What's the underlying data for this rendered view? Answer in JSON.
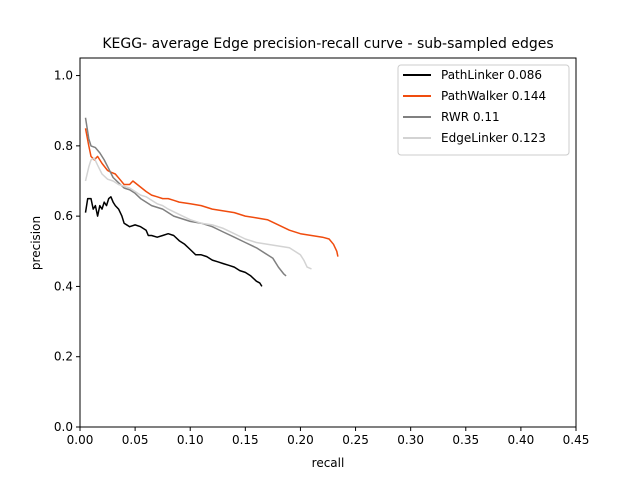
{
  "chart_data": {
    "type": "line",
    "title": "KEGG- average Edge precision-recall curve - sub-sampled edges",
    "xlabel": "recall",
    "ylabel": "precision",
    "xlim": [
      0,
      0.45
    ],
    "ylim": [
      0,
      1.05
    ],
    "xticks": [
      "0.00",
      "0.05",
      "0.10",
      "0.15",
      "0.20",
      "0.25",
      "0.30",
      "0.35",
      "0.40",
      "0.45"
    ],
    "yticks": [
      "0.0",
      "0.2",
      "0.4",
      "0.6",
      "0.8",
      "1.0"
    ],
    "grid": false,
    "legend_position": "upper right",
    "series": [
      {
        "name": "PathLinker 0.086",
        "color": "#000000",
        "points": [
          [
            0.005,
            0.61
          ],
          [
            0.007,
            0.65
          ],
          [
            0.01,
            0.65
          ],
          [
            0.012,
            0.62
          ],
          [
            0.014,
            0.63
          ],
          [
            0.016,
            0.6
          ],
          [
            0.018,
            0.63
          ],
          [
            0.02,
            0.62
          ],
          [
            0.022,
            0.64
          ],
          [
            0.024,
            0.63
          ],
          [
            0.026,
            0.65
          ],
          [
            0.028,
            0.655
          ],
          [
            0.03,
            0.64
          ],
          [
            0.032,
            0.63
          ],
          [
            0.035,
            0.62
          ],
          [
            0.038,
            0.6
          ],
          [
            0.04,
            0.58
          ],
          [
            0.045,
            0.57
          ],
          [
            0.05,
            0.575
          ],
          [
            0.055,
            0.57
          ],
          [
            0.06,
            0.56
          ],
          [
            0.062,
            0.545
          ],
          [
            0.065,
            0.545
          ],
          [
            0.07,
            0.54
          ],
          [
            0.075,
            0.545
          ],
          [
            0.08,
            0.55
          ],
          [
            0.085,
            0.545
          ],
          [
            0.09,
            0.53
          ],
          [
            0.095,
            0.52
          ],
          [
            0.1,
            0.505
          ],
          [
            0.105,
            0.49
          ],
          [
            0.11,
            0.49
          ],
          [
            0.115,
            0.485
          ],
          [
            0.12,
            0.475
          ],
          [
            0.125,
            0.47
          ],
          [
            0.13,
            0.465
          ],
          [
            0.135,
            0.46
          ],
          [
            0.14,
            0.455
          ],
          [
            0.145,
            0.445
          ],
          [
            0.15,
            0.44
          ],
          [
            0.155,
            0.43
          ],
          [
            0.16,
            0.415
          ],
          [
            0.163,
            0.41
          ],
          [
            0.165,
            0.4
          ]
        ]
      },
      {
        "name": "PathWalker 0.144",
        "color": "#f04c0e",
        "points": [
          [
            0.005,
            0.85
          ],
          [
            0.008,
            0.8
          ],
          [
            0.01,
            0.77
          ],
          [
            0.013,
            0.76
          ],
          [
            0.016,
            0.77
          ],
          [
            0.02,
            0.75
          ],
          [
            0.025,
            0.73
          ],
          [
            0.028,
            0.725
          ],
          [
            0.032,
            0.72
          ],
          [
            0.036,
            0.705
          ],
          [
            0.04,
            0.69
          ],
          [
            0.045,
            0.69
          ],
          [
            0.048,
            0.7
          ],
          [
            0.052,
            0.69
          ],
          [
            0.056,
            0.68
          ],
          [
            0.06,
            0.67
          ],
          [
            0.065,
            0.66
          ],
          [
            0.07,
            0.655
          ],
          [
            0.075,
            0.65
          ],
          [
            0.08,
            0.65
          ],
          [
            0.085,
            0.645
          ],
          [
            0.09,
            0.64
          ],
          [
            0.1,
            0.635
          ],
          [
            0.11,
            0.63
          ],
          [
            0.12,
            0.62
          ],
          [
            0.13,
            0.615
          ],
          [
            0.14,
            0.61
          ],
          [
            0.15,
            0.6
          ],
          [
            0.16,
            0.595
          ],
          [
            0.17,
            0.59
          ],
          [
            0.18,
            0.575
          ],
          [
            0.19,
            0.56
          ],
          [
            0.2,
            0.55
          ],
          [
            0.21,
            0.545
          ],
          [
            0.22,
            0.54
          ],
          [
            0.226,
            0.535
          ],
          [
            0.23,
            0.52
          ],
          [
            0.233,
            0.5
          ],
          [
            0.234,
            0.485
          ]
        ]
      },
      {
        "name": "RWR 0.11",
        "color": "#808080",
        "points": [
          [
            0.005,
            0.88
          ],
          [
            0.008,
            0.82
          ],
          [
            0.01,
            0.8
          ],
          [
            0.014,
            0.795
          ],
          [
            0.018,
            0.78
          ],
          [
            0.022,
            0.76
          ],
          [
            0.026,
            0.735
          ],
          [
            0.03,
            0.71
          ],
          [
            0.035,
            0.695
          ],
          [
            0.04,
            0.68
          ],
          [
            0.045,
            0.675
          ],
          [
            0.05,
            0.665
          ],
          [
            0.055,
            0.65
          ],
          [
            0.06,
            0.64
          ],
          [
            0.065,
            0.63
          ],
          [
            0.07,
            0.625
          ],
          [
            0.075,
            0.62
          ],
          [
            0.08,
            0.61
          ],
          [
            0.085,
            0.6
          ],
          [
            0.09,
            0.595
          ],
          [
            0.1,
            0.585
          ],
          [
            0.11,
            0.58
          ],
          [
            0.12,
            0.57
          ],
          [
            0.13,
            0.555
          ],
          [
            0.14,
            0.54
          ],
          [
            0.15,
            0.525
          ],
          [
            0.16,
            0.51
          ],
          [
            0.17,
            0.49
          ],
          [
            0.175,
            0.48
          ],
          [
            0.18,
            0.455
          ],
          [
            0.185,
            0.435
          ],
          [
            0.187,
            0.43
          ]
        ]
      },
      {
        "name": "EdgeLinker 0.123",
        "color": "#d3d3d3",
        "points": [
          [
            0.005,
            0.7
          ],
          [
            0.008,
            0.74
          ],
          [
            0.01,
            0.76
          ],
          [
            0.013,
            0.765
          ],
          [
            0.016,
            0.745
          ],
          [
            0.02,
            0.72
          ],
          [
            0.025,
            0.705
          ],
          [
            0.03,
            0.7
          ],
          [
            0.035,
            0.69
          ],
          [
            0.04,
            0.685
          ],
          [
            0.045,
            0.68
          ],
          [
            0.05,
            0.67
          ],
          [
            0.055,
            0.66
          ],
          [
            0.06,
            0.655
          ],
          [
            0.065,
            0.645
          ],
          [
            0.07,
            0.635
          ],
          [
            0.075,
            0.63
          ],
          [
            0.08,
            0.62
          ],
          [
            0.09,
            0.605
          ],
          [
            0.1,
            0.59
          ],
          [
            0.11,
            0.58
          ],
          [
            0.12,
            0.575
          ],
          [
            0.13,
            0.565
          ],
          [
            0.14,
            0.55
          ],
          [
            0.15,
            0.535
          ],
          [
            0.16,
            0.525
          ],
          [
            0.17,
            0.52
          ],
          [
            0.18,
            0.515
          ],
          [
            0.19,
            0.51
          ],
          [
            0.195,
            0.5
          ],
          [
            0.2,
            0.49
          ],
          [
            0.203,
            0.475
          ],
          [
            0.206,
            0.455
          ],
          [
            0.21,
            0.45
          ]
        ]
      }
    ]
  }
}
